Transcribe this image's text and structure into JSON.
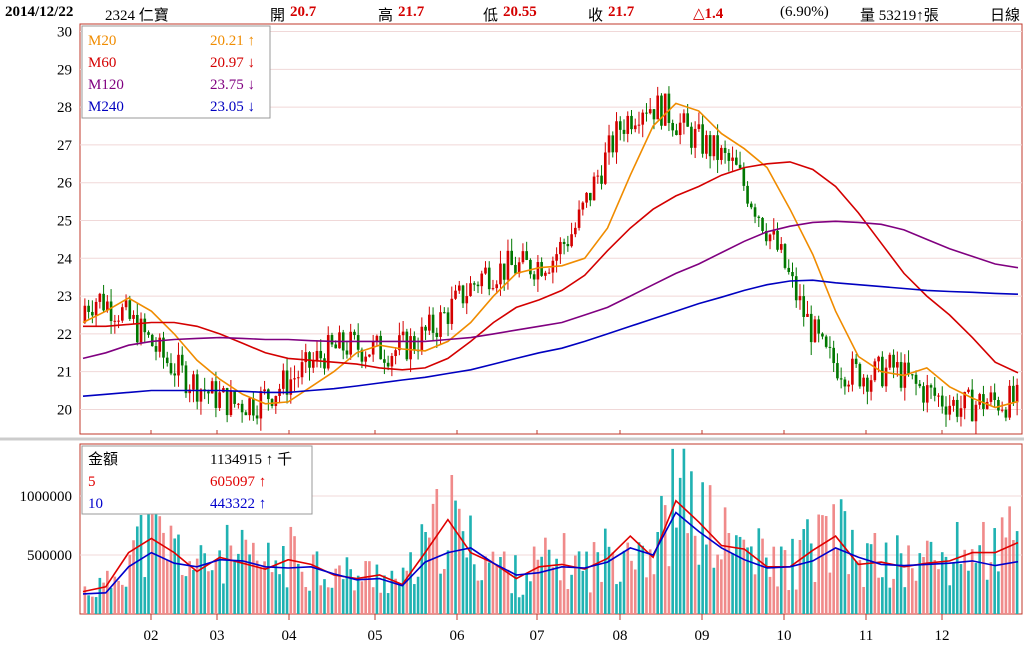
{
  "header": {
    "date": "2014/12/22",
    "stock": "2324 仁寶",
    "open_label": "開",
    "open_value": "20.7",
    "high_label": "高",
    "high_value": "21.7",
    "low_label": "低",
    "low_value": "20.55",
    "close_label": "收",
    "close_value": "21.7",
    "change": "△1.4",
    "change_pct": "(6.90%)",
    "volume": "量 53219↑張",
    "period": "日線"
  },
  "colors": {
    "frame": "#c0392b",
    "grid": "#f0d8d8",
    "up": "#d40000",
    "down": "#007700",
    "m20": "#f08c00",
    "m60": "#d40000",
    "m120": "#800080",
    "m240": "#0000c0",
    "vol_up": "#f08a8a",
    "vol_down": "#20b2b2",
    "ma5": "#e00000",
    "ma10": "#0000cc"
  },
  "legend": {
    "m20_label": "M20",
    "m20_value": "20.21 ↑",
    "m60_label": "M60",
    "m60_value": "20.97 ↓",
    "m120_label": "M120",
    "m120_value": "23.75 ↓",
    "m240_label": "M240",
    "m240_value": "23.05 ↓",
    "amount_label": "金額",
    "amount_value": "1134915 ↑ 千",
    "ma5_label": "5",
    "ma5_value": "605097 ↑",
    "ma10_label": "10",
    "ma10_value": "443322 ↑"
  },
  "chart_data": [
    {
      "type": "candlestick",
      "title": "2324 仁寶 日線",
      "x_ticks": [
        "02",
        "03",
        "04",
        "05",
        "06",
        "07",
        "08",
        "09",
        "10",
        "11",
        "12"
      ],
      "y_ticks": [
        "20",
        "21",
        "22",
        "23",
        "24",
        "25",
        "26",
        "27",
        "28",
        "29",
        "30"
      ],
      "ylim": [
        19.35,
        30.2
      ],
      "series": [
        {
          "name": "M20",
          "values": [
            22.3,
            22.6,
            22.95,
            22.6,
            22.0,
            21.3,
            20.8,
            20.4,
            20.15,
            20.2,
            20.6,
            21.0,
            21.5,
            21.7,
            21.6,
            21.55,
            21.8,
            22.3,
            23.0,
            23.6,
            23.75,
            23.8,
            24.0,
            24.8,
            26.2,
            27.5,
            28.1,
            27.9,
            27.3,
            26.9,
            26.4,
            25.3,
            24.1,
            22.6,
            21.4,
            21.0,
            20.9,
            21.1,
            20.6,
            20.3,
            20.05,
            20.21
          ]
        },
        {
          "name": "M60",
          "values": [
            22.2,
            22.2,
            22.25,
            22.3,
            22.3,
            22.2,
            22.0,
            21.75,
            21.5,
            21.35,
            21.3,
            21.25,
            21.2,
            21.1,
            21.05,
            21.1,
            21.35,
            21.8,
            22.3,
            22.7,
            22.9,
            23.15,
            23.55,
            24.2,
            24.8,
            25.3,
            25.65,
            25.9,
            26.2,
            26.4,
            26.5,
            26.55,
            26.35,
            25.9,
            25.2,
            24.4,
            23.6,
            23.0,
            22.5,
            21.9,
            21.25,
            20.97
          ]
        },
        {
          "name": "M120",
          "values": [
            21.35,
            21.5,
            21.7,
            21.8,
            21.85,
            21.88,
            21.9,
            21.88,
            21.85,
            21.85,
            21.82,
            21.8,
            21.8,
            21.8,
            21.8,
            21.8,
            21.85,
            21.9,
            22.0,
            22.1,
            22.2,
            22.3,
            22.5,
            22.7,
            23.0,
            23.3,
            23.6,
            23.85,
            24.15,
            24.45,
            24.7,
            24.85,
            24.95,
            24.98,
            24.95,
            24.9,
            24.75,
            24.5,
            24.25,
            24.05,
            23.85,
            23.75
          ]
        },
        {
          "name": "M240",
          "values": [
            20.35,
            20.4,
            20.45,
            20.5,
            20.5,
            20.5,
            20.5,
            20.48,
            20.45,
            20.45,
            20.5,
            20.55,
            20.62,
            20.7,
            20.78,
            20.85,
            20.95,
            21.05,
            21.2,
            21.35,
            21.5,
            21.62,
            21.8,
            22.0,
            22.2,
            22.4,
            22.6,
            22.8,
            22.97,
            23.15,
            23.3,
            23.4,
            23.42,
            23.35,
            23.3,
            23.25,
            23.2,
            23.15,
            23.12,
            23.1,
            23.07,
            23.05
          ]
        }
      ]
    },
    {
      "type": "bar",
      "title": "金額",
      "x_ticks": [
        "02",
        "03",
        "04",
        "05",
        "06",
        "07",
        "08",
        "09",
        "10",
        "11",
        "12"
      ],
      "y_ticks": [
        "500000",
        "1000000"
      ],
      "ylim": [
        0,
        1440000
      ],
      "series": [
        {
          "name": "5",
          "values": [
            190000,
            230000,
            520000,
            640000,
            520000,
            360000,
            480000,
            430000,
            380000,
            460000,
            420000,
            330000,
            300000,
            330000,
            250000,
            520000,
            800000,
            520000,
            430000,
            300000,
            400000,
            420000,
            380000,
            470000,
            660000,
            480000,
            960000,
            780000,
            580000,
            550000,
            400000,
            400000,
            540000,
            660000,
            420000,
            440000,
            400000,
            430000,
            450000,
            520000,
            520000,
            605097
          ]
        },
        {
          "name": "10",
          "values": [
            170000,
            180000,
            400000,
            520000,
            430000,
            400000,
            460000,
            450000,
            400000,
            390000,
            400000,
            340000,
            290000,
            300000,
            240000,
            440000,
            520000,
            560000,
            430000,
            330000,
            350000,
            400000,
            390000,
            440000,
            560000,
            500000,
            860000,
            700000,
            560000,
            460000,
            390000,
            400000,
            450000,
            560000,
            480000,
            420000,
            410000,
            420000,
            430000,
            450000,
            410000,
            443322
          ]
        }
      ]
    }
  ]
}
